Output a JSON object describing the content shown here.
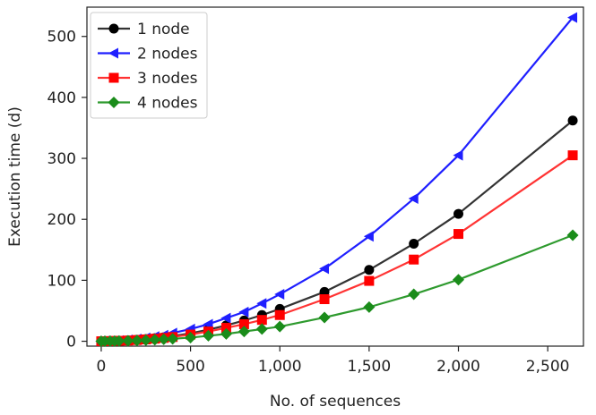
{
  "chart_data": {
    "type": "line",
    "title": "",
    "xlabel": "No. of sequences",
    "ylabel": "Execution time (d)",
    "xlim": [
      -80,
      2700
    ],
    "ylim": [
      -8,
      548
    ],
    "xticks": [
      0,
      500,
      1000,
      1500,
      2000,
      2500
    ],
    "xtick_labels": [
      "0",
      "500",
      "1,000",
      "1,500",
      "2,000",
      "2,500"
    ],
    "yticks": [
      0,
      100,
      200,
      300,
      400,
      500
    ],
    "ytick_labels": [
      "0",
      "100",
      "200",
      "300",
      "400",
      "500"
    ],
    "legend_position": "top-left",
    "grid": false,
    "x": [
      0,
      20,
      50,
      75,
      100,
      150,
      200,
      250,
      300,
      350,
      400,
      500,
      600,
      700,
      800,
      900,
      1000,
      1250,
      1500,
      1750,
      2000,
      2640
    ],
    "series": [
      {
        "name": "1 node",
        "color": "#000000",
        "line_color": "#333333",
        "marker": "circle",
        "values": [
          0,
          0.1,
          0.3,
          0.5,
          0.8,
          1.5,
          2.5,
          3.5,
          5,
          6.5,
          8.5,
          13,
          19,
          26,
          34,
          43,
          53,
          81,
          117,
          160,
          209,
          362
        ]
      },
      {
        "name": "2 nodes",
        "color": "#1f1fff",
        "line_color": "#1f1fff",
        "marker": "triangle-left",
        "values": [
          0,
          0.2,
          0.5,
          0.8,
          1.2,
          2.3,
          3.8,
          5.5,
          7.8,
          10,
          13.5,
          20,
          28,
          38,
          48,
          62,
          77,
          119,
          172,
          234,
          305,
          531
        ]
      },
      {
        "name": "3 nodes",
        "color": "#ff0000",
        "line_color": "#ff3333",
        "marker": "square",
        "values": [
          0,
          0.1,
          0.3,
          0.5,
          0.7,
          1.2,
          2,
          3,
          4.2,
          5.5,
          7,
          11,
          16,
          22,
          28,
          35,
          43,
          69,
          99,
          134,
          176,
          305
        ]
      },
      {
        "name": "4 nodes",
        "color": "#1a8c1a",
        "line_color": "#2e9a2e",
        "marker": "diamond",
        "values": [
          0,
          0.1,
          0.2,
          0.3,
          0.4,
          0.8,
          1.2,
          1.8,
          2.5,
          3.2,
          4,
          6,
          9,
          12,
          16,
          20,
          24,
          39,
          56,
          77,
          101,
          174
        ]
      }
    ]
  }
}
